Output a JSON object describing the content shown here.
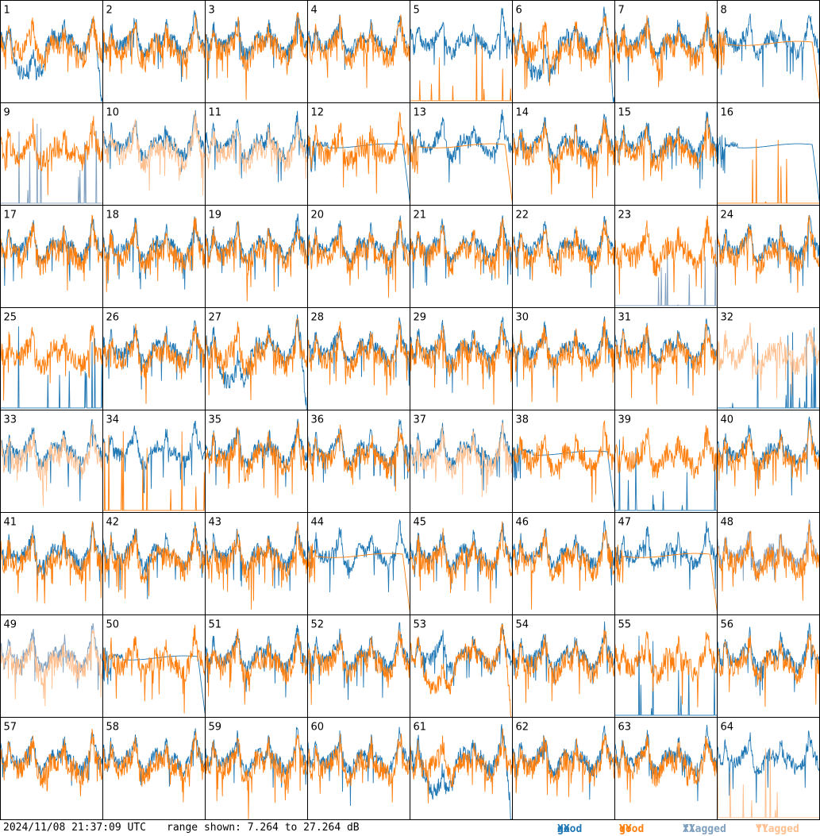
{
  "timestamp": "2024/11/08 21:37:09 UTC",
  "range_text": "range shown: 7.264 to 27.264 dB",
  "legend": [
    {
      "word": "good",
      "pol": "XX",
      "color": "#1f77b4"
    },
    {
      "word": "good",
      "pol": "YY",
      "color": "#ff7f0e"
    },
    {
      "word": "flagged",
      "pol": "XX",
      "color": "#7f9fbf"
    },
    {
      "word": "flagged",
      "pol": "YY",
      "color": "#ffbf8f"
    }
  ],
  "chart_data": {
    "type": "line",
    "grid": {
      "rows": 8,
      "cols": 8
    },
    "ylim": [
      7.264,
      27.264
    ],
    "units": "dB",
    "series_colors": {
      "good_xx": "#1f77b4",
      "good_yy": "#ff7f0e",
      "flagged_xx": "#7f9fbf",
      "flagged_yy": "#ffbf8f"
    },
    "panels": [
      {
        "label": "1",
        "xx": "sag",
        "yy": "normal",
        "flag_xx": false,
        "flag_yy": false
      },
      {
        "label": "2",
        "xx": "normal",
        "yy": "normal",
        "flag_xx": false,
        "flag_yy": false
      },
      {
        "label": "3",
        "xx": "normal",
        "yy": "normal",
        "flag_xx": false,
        "flag_yy": false
      },
      {
        "label": "4",
        "xx": "normal",
        "yy": "normal",
        "flag_xx": false,
        "flag_yy": false
      },
      {
        "label": "5",
        "xx": "normal",
        "yy": "spikes",
        "flag_xx": false,
        "flag_yy": false
      },
      {
        "label": "6",
        "xx": "sag",
        "yy": "normal",
        "flag_xx": false,
        "flag_yy": false
      },
      {
        "label": "7",
        "xx": "normal",
        "yy": "normal",
        "flag_xx": false,
        "flag_yy": false
      },
      {
        "label": "8",
        "xx": "normal",
        "yy": "smooth",
        "flag_xx": false,
        "flag_yy": false
      },
      {
        "label": "9",
        "xx": "spikes",
        "yy": "normal",
        "flag_xx": true,
        "flag_yy": false
      },
      {
        "label": "10",
        "xx": "normal",
        "yy": "normal",
        "flag_xx": false,
        "flag_yy": true
      },
      {
        "label": "11",
        "xx": "normal",
        "yy": "normal",
        "flag_xx": false,
        "flag_yy": true
      },
      {
        "label": "12",
        "xx": "smooth",
        "yy": "normal",
        "flag_xx": false,
        "flag_yy": false
      },
      {
        "label": "13",
        "xx": "normal",
        "yy": "smooth",
        "flag_xx": false,
        "flag_yy": false
      },
      {
        "label": "14",
        "xx": "normal",
        "yy": "normal",
        "flag_xx": false,
        "flag_yy": false
      },
      {
        "label": "15",
        "xx": "normal",
        "yy": "normal",
        "flag_xx": false,
        "flag_yy": false
      },
      {
        "label": "16",
        "xx": "smooth",
        "yy": "spikes",
        "flag_xx": false,
        "flag_yy": false
      },
      {
        "label": "17",
        "xx": "normal",
        "yy": "normal",
        "flag_xx": false,
        "flag_yy": false
      },
      {
        "label": "18",
        "xx": "normal",
        "yy": "normal",
        "flag_xx": false,
        "flag_yy": false
      },
      {
        "label": "19",
        "xx": "normal",
        "yy": "normal",
        "flag_xx": false,
        "flag_yy": false
      },
      {
        "label": "20",
        "xx": "normal",
        "yy": "normal",
        "flag_xx": false,
        "flag_yy": false
      },
      {
        "label": "21",
        "xx": "normal",
        "yy": "normal",
        "flag_xx": false,
        "flag_yy": false
      },
      {
        "label": "22",
        "xx": "normal",
        "yy": "normal",
        "flag_xx": false,
        "flag_yy": false
      },
      {
        "label": "23",
        "xx": "spikes",
        "yy": "normal",
        "flag_xx": true,
        "flag_yy": false
      },
      {
        "label": "24",
        "xx": "normal",
        "yy": "normal",
        "flag_xx": false,
        "flag_yy": false
      },
      {
        "label": "25",
        "xx": "spikes",
        "yy": "normal",
        "flag_xx": false,
        "flag_yy": false
      },
      {
        "label": "26",
        "xx": "normal",
        "yy": "normal",
        "flag_xx": false,
        "flag_yy": false
      },
      {
        "label": "27",
        "xx": "sag",
        "yy": "normal",
        "flag_xx": false,
        "flag_yy": false
      },
      {
        "label": "28",
        "xx": "normal",
        "yy": "normal",
        "flag_xx": false,
        "flag_yy": false
      },
      {
        "label": "29",
        "xx": "normal",
        "yy": "normal",
        "flag_xx": false,
        "flag_yy": false
      },
      {
        "label": "30",
        "xx": "normal",
        "yy": "normal",
        "flag_xx": false,
        "flag_yy": false
      },
      {
        "label": "31",
        "xx": "normal",
        "yy": "normal",
        "flag_xx": false,
        "flag_yy": false
      },
      {
        "label": "32",
        "xx": "spikes",
        "yy": "normal",
        "flag_xx": false,
        "flag_yy": true
      },
      {
        "label": "33",
        "xx": "normal",
        "yy": "normal",
        "flag_xx": false,
        "flag_yy": true
      },
      {
        "label": "34",
        "xx": "normal",
        "yy": "spikes",
        "flag_xx": false,
        "flag_yy": false
      },
      {
        "label": "35",
        "xx": "normal",
        "yy": "normal",
        "flag_xx": false,
        "flag_yy": false
      },
      {
        "label": "36",
        "xx": "normal",
        "yy": "normal",
        "flag_xx": false,
        "flag_yy": false
      },
      {
        "label": "37",
        "xx": "normal",
        "yy": "normal",
        "flag_xx": false,
        "flag_yy": true
      },
      {
        "label": "38",
        "xx": "smooth",
        "yy": "normal",
        "flag_xx": false,
        "flag_yy": false
      },
      {
        "label": "39",
        "xx": "spikes",
        "yy": "normal",
        "flag_xx": false,
        "flag_yy": false
      },
      {
        "label": "40",
        "xx": "normal",
        "yy": "normal",
        "flag_xx": false,
        "flag_yy": false
      },
      {
        "label": "41",
        "xx": "normal",
        "yy": "normal",
        "flag_xx": false,
        "flag_yy": false
      },
      {
        "label": "42",
        "xx": "normal",
        "yy": "normal",
        "flag_xx": false,
        "flag_yy": false
      },
      {
        "label": "43",
        "xx": "normal",
        "yy": "normal",
        "flag_xx": false,
        "flag_yy": false
      },
      {
        "label": "44",
        "xx": "normal",
        "yy": "smooth",
        "flag_xx": false,
        "flag_yy": false
      },
      {
        "label": "45",
        "xx": "normal",
        "yy": "normal",
        "flag_xx": false,
        "flag_yy": false
      },
      {
        "label": "46",
        "xx": "normal",
        "yy": "normal",
        "flag_xx": false,
        "flag_yy": false
      },
      {
        "label": "47",
        "xx": "normal",
        "yy": "smooth",
        "flag_xx": false,
        "flag_yy": false
      },
      {
        "label": "48",
        "xx": "normal",
        "yy": "normal",
        "flag_xx": true,
        "flag_yy": false
      },
      {
        "label": "49",
        "xx": "normal",
        "yy": "normal",
        "flag_xx": true,
        "flag_yy": true
      },
      {
        "label": "50",
        "xx": "smooth",
        "yy": "normal",
        "flag_xx": false,
        "flag_yy": false
      },
      {
        "label": "51",
        "xx": "normal",
        "yy": "normal",
        "flag_xx": false,
        "flag_yy": false
      },
      {
        "label": "52",
        "xx": "normal",
        "yy": "normal",
        "flag_xx": false,
        "flag_yy": false
      },
      {
        "label": "53",
        "xx": "normal",
        "yy": "sag",
        "flag_xx": false,
        "flag_yy": false
      },
      {
        "label": "54",
        "xx": "normal",
        "yy": "normal",
        "flag_xx": false,
        "flag_yy": false
      },
      {
        "label": "55",
        "xx": "spikes",
        "yy": "normal",
        "flag_xx": false,
        "flag_yy": false
      },
      {
        "label": "56",
        "xx": "normal",
        "yy": "normal",
        "flag_xx": false,
        "flag_yy": false
      },
      {
        "label": "57",
        "xx": "normal",
        "yy": "normal",
        "flag_xx": false,
        "flag_yy": false
      },
      {
        "label": "58",
        "xx": "normal",
        "yy": "normal",
        "flag_xx": false,
        "flag_yy": false
      },
      {
        "label": "59",
        "xx": "normal",
        "yy": "normal",
        "flag_xx": false,
        "flag_yy": false
      },
      {
        "label": "60",
        "xx": "normal",
        "yy": "normal",
        "flag_xx": false,
        "flag_yy": false
      },
      {
        "label": "61",
        "xx": "sag",
        "yy": "normal",
        "flag_xx": false,
        "flag_yy": false
      },
      {
        "label": "62",
        "xx": "normal",
        "yy": "normal",
        "flag_xx": false,
        "flag_yy": false
      },
      {
        "label": "63",
        "xx": "normal",
        "yy": "normal",
        "flag_xx": false,
        "flag_yy": false
      },
      {
        "label": "64",
        "xx": "normal",
        "yy": "spikes",
        "flag_xx": false,
        "flag_yy": true
      }
    ]
  }
}
